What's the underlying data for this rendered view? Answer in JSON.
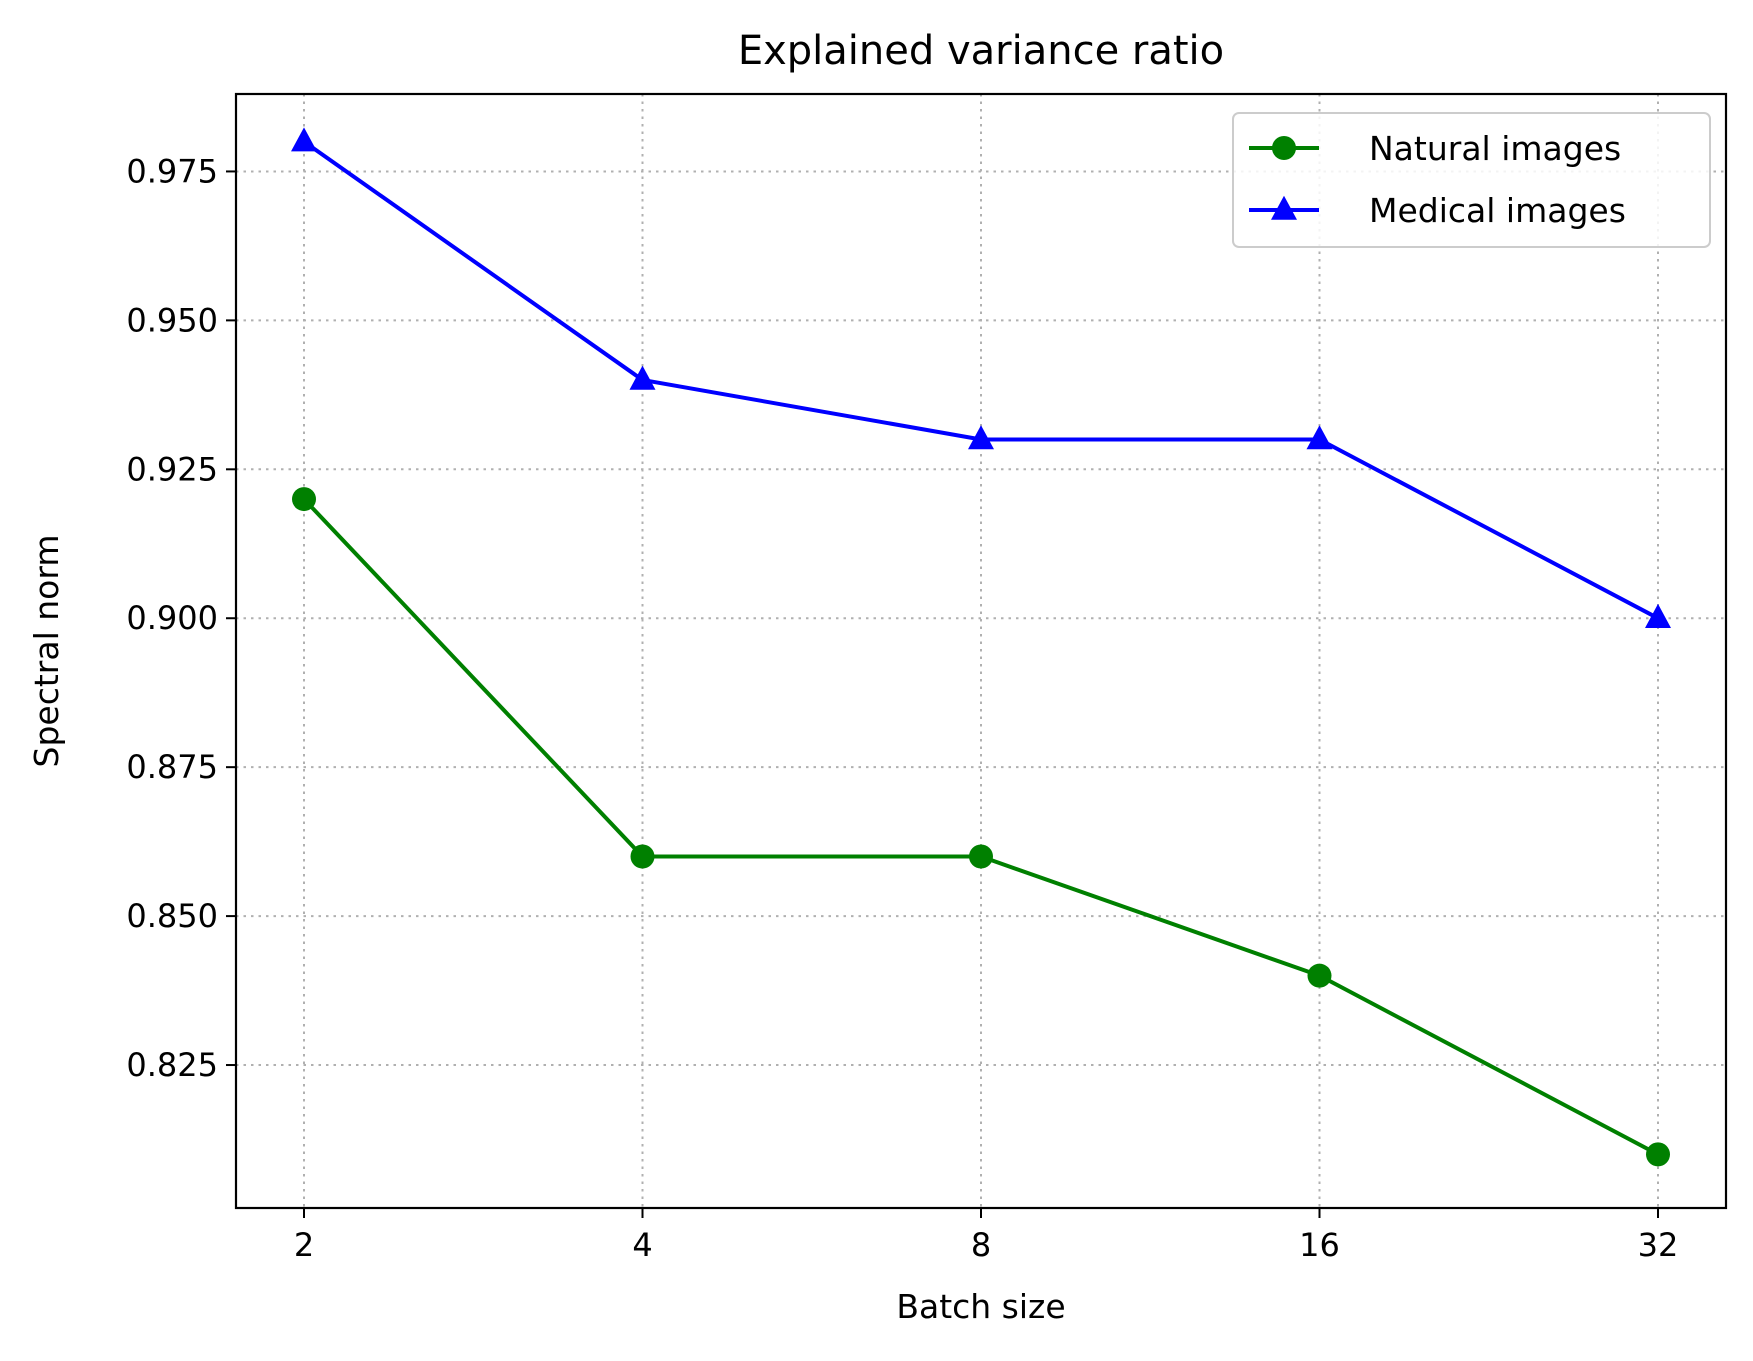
{
  "chart_data": {
    "type": "line",
    "title": "Explained variance ratio",
    "xlabel": "Batch size",
    "ylabel": "Spectral norm",
    "x": [
      "2",
      "4",
      "8",
      "16",
      "32"
    ],
    "xscale": "categorical",
    "ylim": [
      0.801,
      0.988
    ],
    "yticks": [
      "0.825",
      "0.850",
      "0.875",
      "0.900",
      "0.925",
      "0.950",
      "0.975"
    ],
    "grid": true,
    "legend_position": "top-right",
    "series": [
      {
        "name": "Natural images",
        "values": [
          0.92,
          0.86,
          0.86,
          0.84,
          0.81
        ],
        "color": "#008000",
        "marker": "circle"
      },
      {
        "name": "Medical images",
        "values": [
          0.98,
          0.94,
          0.93,
          0.93,
          0.9
        ],
        "color": "#0000ff",
        "marker": "triangle"
      }
    ]
  }
}
